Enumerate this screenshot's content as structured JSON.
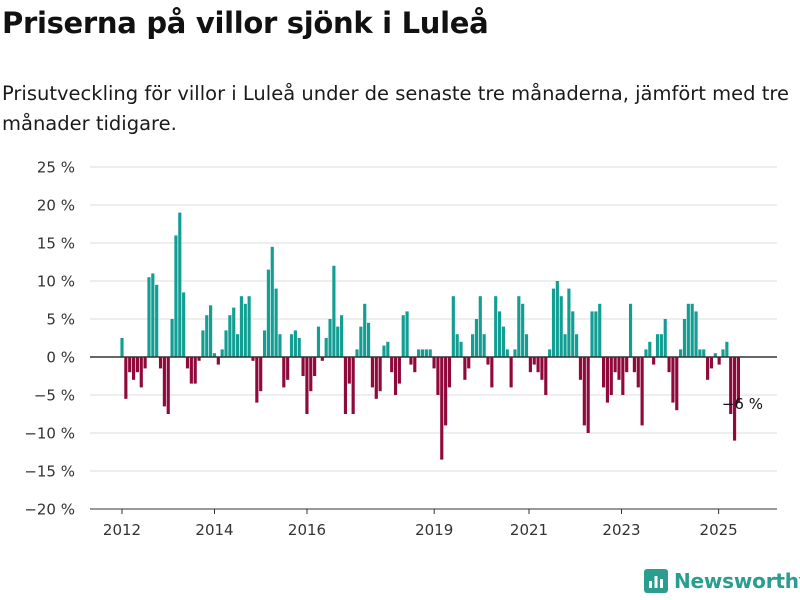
{
  "header": {
    "title": "Priserna på villor sjönk i Luleå",
    "subtitle": "Prisutveckling för villor i Luleå under de senaste tre månaderna, jämfört med tre månader tidigare."
  },
  "brand": {
    "name": "Newsworthy",
    "color": "#2a9d8f"
  },
  "chart_data": {
    "type": "bar",
    "y_ticks": [
      "25 %",
      "20 %",
      "15 %",
      "10 %",
      "5 %",
      "0 %",
      "−5 %",
      "−10 %",
      "−15 %",
      "−20 %"
    ],
    "ylim": [
      -20,
      25
    ],
    "x_ticks": [
      "2012",
      "2014",
      "2016",
      "2019",
      "2021",
      "2023",
      "2025"
    ],
    "x_tick_positions": [
      2012.0,
      2014.0,
      2016.0,
      2018.75,
      2020.8,
      2022.8,
      2024.9
    ],
    "x_start": 2012.0,
    "bar_step_years": 0.0833,
    "grid": true,
    "colors": {
      "positive": "#139e94",
      "negative": "#8f0a3a"
    },
    "annotation": {
      "text": "−6 %"
    },
    "values": [
      2.5,
      -5.5,
      -2.0,
      -3.0,
      -2.0,
      -4.0,
      -1.5,
      10.5,
      11.0,
      9.5,
      -1.5,
      -6.5,
      -7.5,
      5.0,
      16.0,
      19.0,
      8.5,
      -1.5,
      -3.5,
      -3.5,
      -0.5,
      3.5,
      5.5,
      6.8,
      0.5,
      -1.0,
      1.0,
      3.5,
      5.5,
      6.5,
      3.0,
      8.0,
      7.0,
      8.0,
      -0.5,
      -6.0,
      -4.5,
      3.5,
      11.5,
      14.5,
      9.0,
      3.0,
      -4.0,
      -3.0,
      3.0,
      3.5,
      2.5,
      -2.5,
      -7.5,
      -4.5,
      -2.5,
      4.0,
      -0.5,
      2.5,
      5.0,
      12.0,
      4.0,
      5.5,
      -7.5,
      -3.5,
      -7.5,
      1.0,
      4.0,
      7.0,
      4.5,
      -4.0,
      -5.5,
      -4.5,
      1.5,
      2.0,
      -2.0,
      -5.0,
      -3.5,
      5.5,
      6.0,
      -1.0,
      -2.0,
      1.0,
      1.0,
      1.0,
      1.0,
      -1.5,
      -5.0,
      -13.5,
      -9.0,
      -4.0,
      8.0,
      3.0,
      2.0,
      -3.0,
      -1.5,
      3.0,
      5.0,
      8.0,
      3.0,
      -1.0,
      -4.0,
      8.0,
      6.0,
      4.0,
      1.0,
      -4.0,
      1.0,
      8.0,
      7.0,
      3.0,
      -2.0,
      -1.0,
      -2.0,
      -3.0,
      -5.0,
      1.0,
      9.0,
      10.0,
      8.0,
      3.0,
      9.0,
      6.0,
      3.0,
      -3.0,
      -9.0,
      -10.0,
      6.0,
      6.0,
      7.0,
      -4.0,
      -6.0,
      -5.0,
      -2.0,
      -3.0,
      -5.0,
      -2.0,
      7.0,
      -2.0,
      -4.0,
      -9.0,
      1.0,
      2.0,
      -1.0,
      3.0,
      3.0,
      5.0,
      -2.0,
      -6.0,
      -7.0,
      1.0,
      5.0,
      7.0,
      7.0,
      6.0,
      1.0,
      1.0,
      -3.0,
      -1.5,
      0.5,
      -1.0,
      1.0,
      2.0,
      -7.5,
      -11.0,
      -6.0
    ]
  }
}
